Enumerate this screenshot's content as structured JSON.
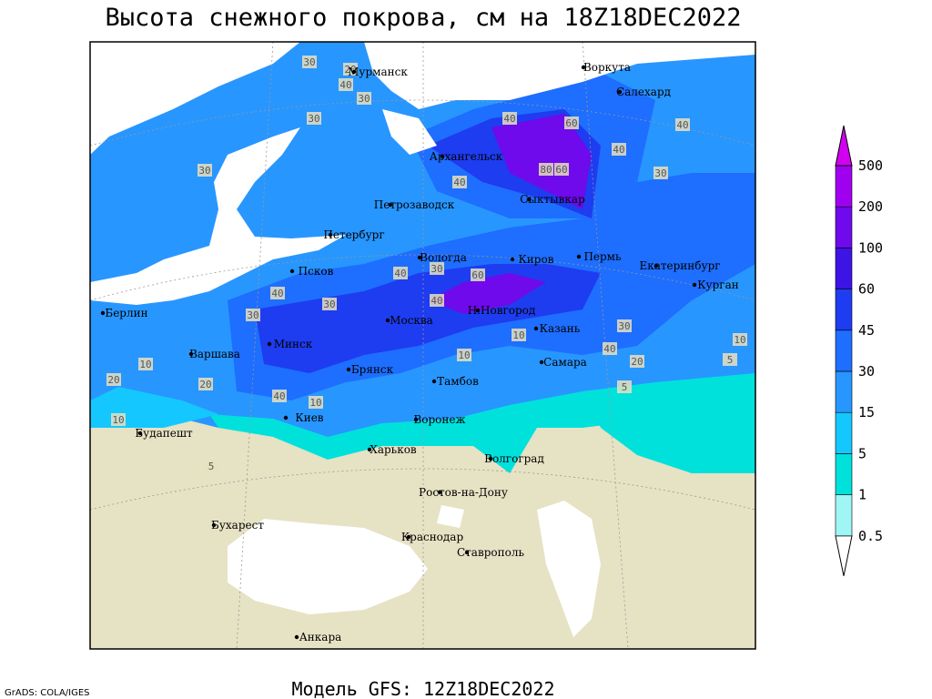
{
  "header": {
    "title": "Высота снежного покрова, см на 18Z18DEC2022"
  },
  "footer": {
    "model": "Модель GFS: 12Z18DEC2022",
    "credit": "GrADS: COLA/IGES"
  },
  "legend": {
    "levels": [
      0.5,
      1,
      5,
      15,
      30,
      45,
      60,
      100,
      200,
      500
    ],
    "colors": [
      "#ffffff",
      "#a0f5f5",
      "#00e1dc",
      "#14c8ff",
      "#2896ff",
      "#1e6eff",
      "#1e3cf0",
      "#3c14e6",
      "#6e0aeb",
      "#a000f0",
      "#d200f0"
    ]
  },
  "cities": [
    "Мурманск",
    "Воркута",
    "Салехард",
    "Архангельск",
    "Сыктывкар",
    "Петрозаводск",
    "Петербург",
    "Вологда",
    "Киров",
    "Пермь",
    "Екатеринбург",
    "Курган",
    "Псков",
    "Берлин",
    "Н.Новгород",
    "Москва",
    "Казань",
    "Минск",
    "Варшава",
    "Самара",
    "Брянск",
    "Тамбов",
    "Киев",
    "Воронеж",
    "Будапешт",
    "Харьков",
    "Волгоград",
    "Ростов-на-Дону",
    "Бухарест",
    "Краснодар",
    "Ставрополь",
    "Анкара"
  ],
  "contour_labels": [
    30,
    20,
    40,
    30,
    30,
    30,
    40,
    60,
    80,
    60,
    40,
    40,
    30,
    40,
    40,
    30,
    60,
    40,
    40,
    30,
    30,
    10,
    20,
    20,
    40,
    10,
    10,
    10,
    5,
    20,
    40,
    30,
    10,
    5,
    5,
    10
  ]
}
